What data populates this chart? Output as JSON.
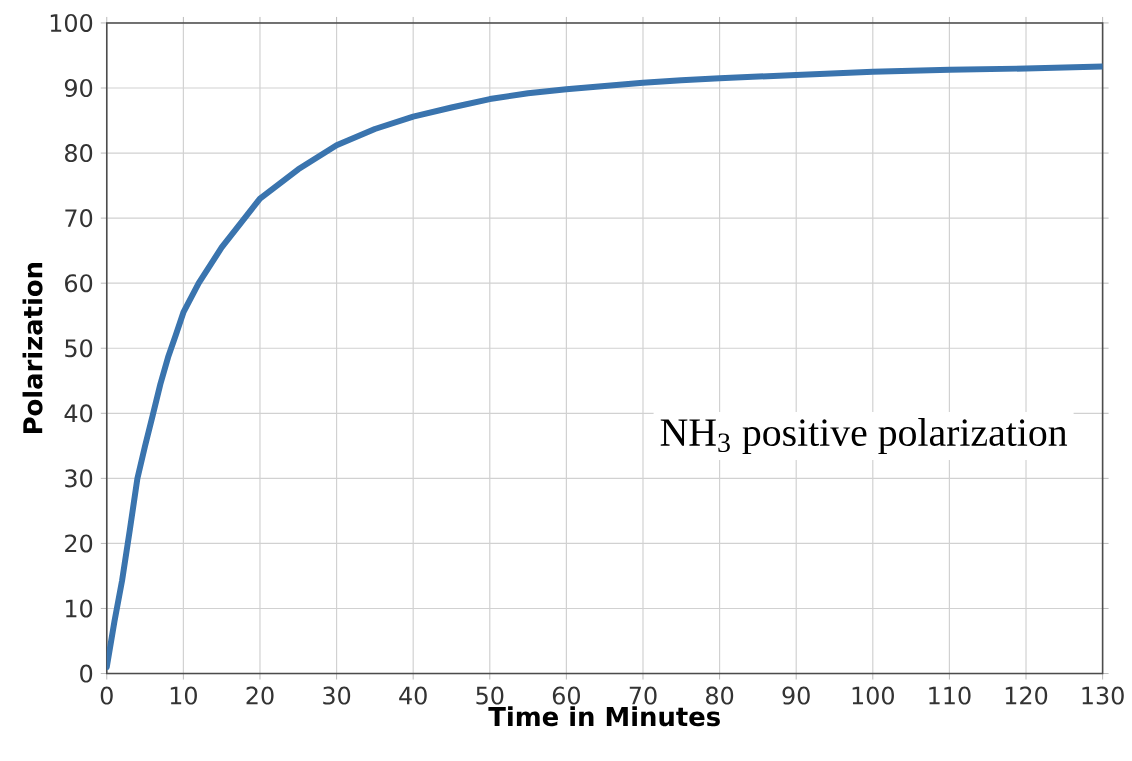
{
  "chart_data": {
    "type": "line",
    "xlabel": "Time in Minutes",
    "ylabel": "Polarization",
    "annotations": [
      "NH$_{3}$ positive polarization"
    ],
    "x": [
      0,
      1,
      2,
      3,
      4,
      5,
      6,
      7,
      8,
      9,
      10,
      12,
      15,
      18,
      20,
      25,
      30,
      35,
      40,
      45,
      50,
      55,
      60,
      65,
      70,
      75,
      80,
      90,
      100,
      110,
      120,
      130
    ],
    "series": [
      {
        "color": "#3a74ae",
        "values": [
          1,
          8,
          14.3,
          22,
          30,
          35,
          39.7,
          44.5,
          48.6,
          52,
          55.5,
          60,
          65.5,
          70,
          73,
          77.5,
          81.2,
          83.7,
          85.6,
          87,
          88.3,
          89.2,
          89.8,
          90.3,
          90.8,
          91.2,
          91.5,
          92,
          92.5,
          92.8,
          93,
          93.3
        ]
      }
    ],
    "xlim": [
      0,
      130
    ],
    "xticks": [
      0,
      10,
      20,
      30,
      40,
      50,
      60,
      70,
      80,
      90,
      100,
      110,
      120,
      130
    ],
    "ylim": [
      0,
      100
    ],
    "yticks": [
      0,
      10,
      20,
      30,
      40,
      50,
      60,
      70,
      80,
      90,
      100
    ],
    "grid": true,
    "marker": "none",
    "line_style": "solid"
  }
}
